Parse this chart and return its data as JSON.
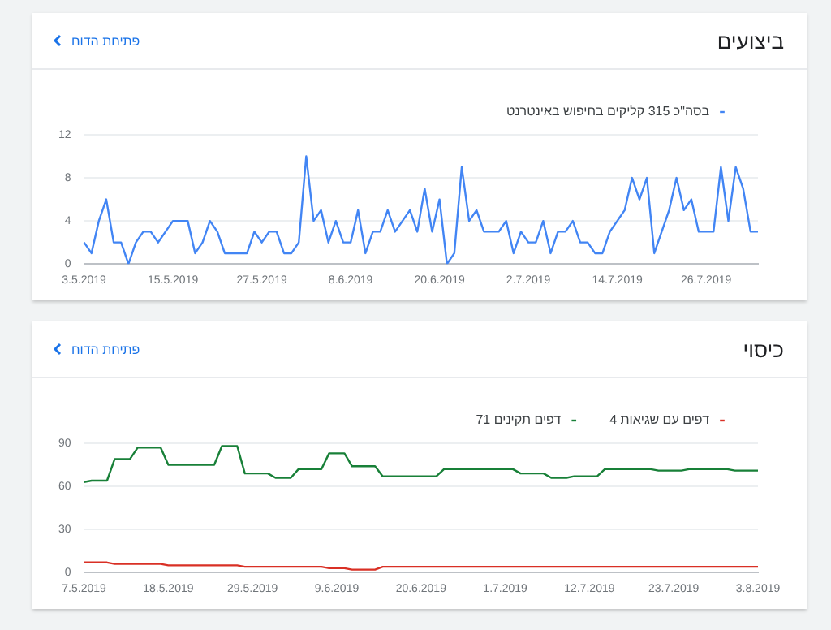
{
  "chart_data": [
    {
      "type": "line",
      "title": "ביצועים",
      "annotations": [
        "פתיחת הדוח"
      ],
      "categories": [
        "3.5.2019",
        null,
        null,
        null,
        null,
        null,
        null,
        null,
        null,
        null,
        null,
        null,
        "15.5.2019",
        null,
        null,
        null,
        null,
        null,
        null,
        null,
        null,
        null,
        null,
        null,
        "27.5.2019",
        null,
        null,
        null,
        null,
        null,
        null,
        null,
        null,
        null,
        null,
        null,
        "8.6.2019",
        null,
        null,
        null,
        null,
        null,
        null,
        null,
        null,
        null,
        null,
        null,
        "20.6.2019",
        null,
        null,
        null,
        null,
        null,
        null,
        null,
        null,
        null,
        null,
        null,
        "2.7.2019",
        null,
        null,
        null,
        null,
        null,
        null,
        null,
        null,
        null,
        null,
        null,
        "14.7.2019",
        null,
        null,
        null,
        null,
        null,
        null,
        null,
        null,
        null,
        null,
        null,
        "26.7.2019",
        null,
        null,
        null,
        null,
        null,
        null,
        null
      ],
      "series": [
        {
          "name": "בסה\"כ 315 קליקים בחיפוש באינטרנט",
          "color": "#4285f4",
          "values": [
            2,
            1,
            4,
            6,
            2,
            2,
            0,
            2,
            3,
            3,
            2,
            3,
            4,
            4,
            4,
            1,
            2,
            4,
            3,
            1,
            1,
            1,
            1,
            3,
            2,
            3,
            3,
            1,
            1,
            2,
            10,
            4,
            5,
            2,
            4,
            2,
            2,
            5,
            1,
            3,
            3,
            5,
            3,
            4,
            5,
            3,
            7,
            3,
            6,
            0,
            1,
            9,
            4,
            5,
            3,
            3,
            3,
            4,
            1,
            3,
            2,
            2,
            4,
            1,
            3,
            3,
            4,
            2,
            2,
            1,
            1,
            3,
            4,
            5,
            8,
            6,
            8,
            1,
            3,
            5,
            8,
            5,
            6,
            3,
            3,
            3,
            9,
            4,
            9,
            7,
            3,
            3
          ]
        }
      ],
      "ylim": [
        0,
        12
      ],
      "yticks": [
        0,
        4,
        8,
        12
      ],
      "grid": "y",
      "legend": "top right"
    },
    {
      "type": "line",
      "title": "כיסוי",
      "annotations": [
        "פתיחת הדוח"
      ],
      "categories": [
        "7.5.2019",
        null,
        null,
        null,
        null,
        null,
        null,
        null,
        null,
        null,
        null,
        "18.5.2019",
        null,
        null,
        null,
        null,
        null,
        null,
        null,
        null,
        null,
        null,
        "29.5.2019",
        null,
        null,
        null,
        null,
        null,
        null,
        null,
        null,
        null,
        null,
        "9.6.2019",
        null,
        null,
        null,
        null,
        null,
        null,
        null,
        null,
        null,
        null,
        "20.6.2019",
        null,
        null,
        null,
        null,
        null,
        null,
        null,
        null,
        null,
        null,
        "1.7.2019",
        null,
        null,
        null,
        null,
        null,
        null,
        null,
        null,
        null,
        null,
        "12.7.2019",
        null,
        null,
        null,
        null,
        null,
        null,
        null,
        null,
        null,
        null,
        "23.7.2019",
        null,
        null,
        null,
        null,
        null,
        null,
        null,
        null,
        null,
        null,
        "3.8.2019"
      ],
      "series": [
        {
          "name": "4 דפים עם שגיאות",
          "color": "#d93025",
          "values": [
            7,
            7,
            7,
            7,
            6,
            6,
            6,
            6,
            6,
            6,
            6,
            5,
            5,
            5,
            5,
            5,
            5,
            5,
            5,
            5,
            5,
            4,
            4,
            4,
            4,
            4,
            4,
            4,
            4,
            4,
            4,
            4,
            3,
            3,
            3,
            2,
            2,
            2,
            2,
            4,
            4,
            4,
            4,
            4,
            4,
            4,
            4,
            4,
            4,
            4,
            4,
            4,
            4,
            4,
            4,
            4,
            4,
            4,
            4,
            4,
            4,
            4,
            4,
            4,
            4,
            4,
            4,
            4,
            4,
            4,
            4,
            4,
            4,
            4,
            4,
            4,
            4,
            4,
            4,
            4,
            4,
            4,
            4,
            4,
            4,
            4,
            4,
            4,
            4
          ]
        },
        {
          "name": "71 דפים תקינים",
          "color": "#188038",
          "values": [
            63,
            64,
            64,
            64,
            79,
            79,
            79,
            87,
            87,
            87,
            87,
            75,
            75,
            75,
            75,
            75,
            75,
            75,
            88,
            88,
            88,
            69,
            69,
            69,
            69,
            66,
            66,
            66,
            72,
            72,
            72,
            72,
            83,
            83,
            83,
            74,
            74,
            74,
            74,
            67,
            67,
            67,
            67,
            67,
            67,
            67,
            67,
            72,
            72,
            72,
            72,
            72,
            72,
            72,
            72,
            72,
            72,
            69,
            69,
            69,
            69,
            66,
            66,
            66,
            67,
            67,
            67,
            67,
            72,
            72,
            72,
            72,
            72,
            72,
            72,
            71,
            71,
            71,
            71,
            72,
            72,
            72,
            72,
            72,
            72,
            71,
            71,
            71,
            71
          ]
        }
      ],
      "ylim": [
        0,
        90
      ],
      "yticks": [
        0,
        30,
        60,
        90
      ],
      "grid": "y",
      "legend": "top right"
    }
  ]
}
